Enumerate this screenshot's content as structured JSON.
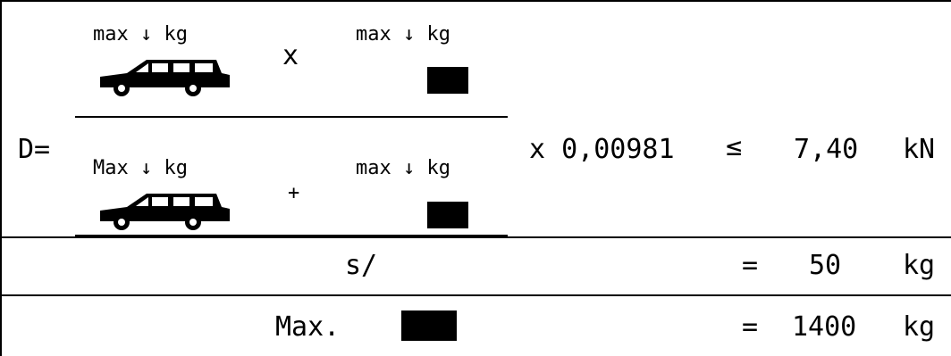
{
  "formula": {
    "lhs": "D=",
    "numerator": {
      "left_label": "max ↓ kg",
      "operator": "x",
      "right_label": "max ↓ kg"
    },
    "denominator": {
      "left_label": "Max ↓ kg",
      "operator": "+",
      "right_label": "max ↓ kg"
    },
    "multiplier": "x 0,00981",
    "comparison": "≤",
    "limit_value": "7,40",
    "limit_unit": "kN"
  },
  "rows": [
    {
      "label": "s/",
      "equals": "=",
      "value": "50",
      "unit": "kg"
    },
    {
      "label": "Max.",
      "equals": "=",
      "value": "1400",
      "unit": "kg"
    }
  ],
  "icons": {
    "vehicle": "station-wagon-car-icon",
    "trailer": "trailer-block-icon"
  }
}
